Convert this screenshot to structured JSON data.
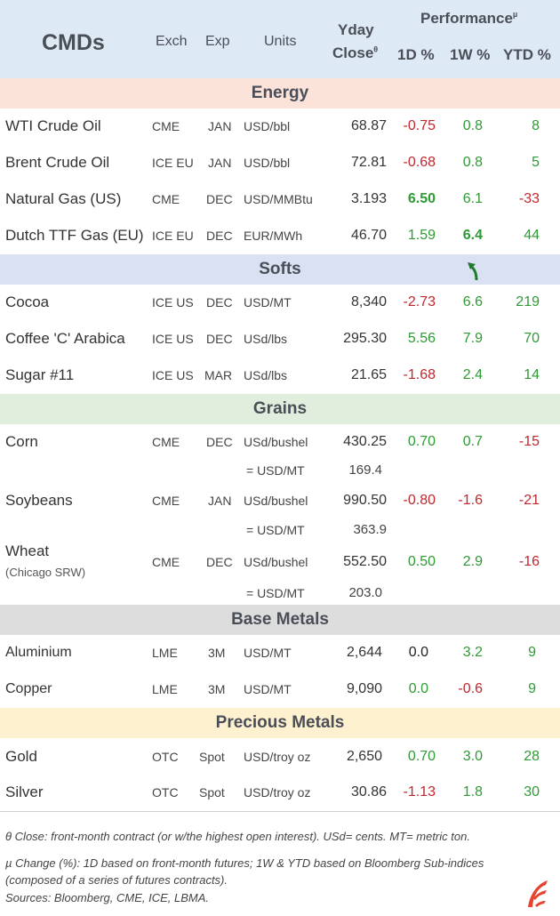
{
  "header": {
    "title": "CMDs",
    "exch": "Exch",
    "exp": "Exp",
    "units": "Units",
    "yday": "Yday",
    "close": "Close",
    "close_mark": "θ",
    "performance": "Performance",
    "perf_mark": "µ",
    "d1": "1D %",
    "w1": "1W %",
    "ytd": "YTD %"
  },
  "sections": {
    "energy": "Energy",
    "softs": "Softs",
    "grains": "Grains",
    "base": "Base Metals",
    "precious": "Precious Metals"
  },
  "rows": {
    "wti": {
      "name": "WTI Crude Oil",
      "exch": "CME",
      "exp": "JAN",
      "units": "USD/bbl",
      "close": "68.87",
      "d1": "-0.75",
      "w1": "0.8",
      "ytd": "8"
    },
    "brent": {
      "name": "Brent Crude Oil",
      "exch": "ICE EU",
      "exp": "JAN",
      "units": "USD/bbl",
      "close": "72.81",
      "d1": "-0.68",
      "w1": "0.8",
      "ytd": "5"
    },
    "natgas": {
      "name": "Natural Gas (US)",
      "exch": "CME",
      "exp": "DEC",
      "units": "USD/MMBtu",
      "close": "3.193",
      "d1": "6.50",
      "w1": "6.1",
      "ytd": "-33"
    },
    "ttf": {
      "name": "Dutch TTF Gas (EU)",
      "exch": "ICE EU",
      "exp": "DEC",
      "units": "EUR/MWh",
      "close": "46.70",
      "d1": "1.59",
      "w1": "6.4",
      "ytd": "44"
    },
    "cocoa": {
      "name": "Cocoa",
      "exch": "ICE US",
      "exp": "DEC",
      "units": "USD/MT",
      "close": "8,340",
      "d1": "-2.73",
      "w1": "6.6",
      "ytd": "219"
    },
    "coffee": {
      "name": "Coffee 'C' Arabica",
      "exch": "ICE US",
      "exp": "DEC",
      "units": "USd/lbs",
      "close": "295.30",
      "d1": "5.56",
      "w1": "7.9",
      "ytd": "70"
    },
    "sugar": {
      "name": "Sugar #11",
      "exch": "ICE US",
      "exp": "MAR",
      "units": "USd/lbs",
      "close": "21.65",
      "d1": "-1.68",
      "w1": "2.4",
      "ytd": "14"
    },
    "corn": {
      "name": "Corn",
      "exch": "CME",
      "exp": "DEC",
      "units": "USd/bushel",
      "close": "430.25",
      "d1": "0.70",
      "w1": "0.7",
      "ytd": "-15",
      "alt_units": "= USD/MT",
      "alt_close": "169.4"
    },
    "soy": {
      "name": "Soybeans",
      "exch": "CME",
      "exp": "JAN",
      "units": "USd/bushel",
      "close": "990.50",
      "d1": "-0.80",
      "w1": "-1.6",
      "ytd": "-21",
      "alt_units": "= USD/MT",
      "alt_close": "363.9"
    },
    "wheat": {
      "name": "Wheat",
      "subname": "(Chicago SRW)",
      "exch": "CME",
      "exp": "DEC",
      "units": "USd/bushel",
      "close": "552.50",
      "d1": "0.50",
      "w1": "2.9",
      "ytd": "-16",
      "alt_units": "= USD/MT",
      "alt_close": "203.0"
    },
    "alu": {
      "name": "Aluminium",
      "exch": "LME",
      "exp": "3M",
      "units": "USD/MT",
      "close": "2,644",
      "d1": "0.0",
      "w1": "3.2",
      "ytd": "9"
    },
    "copper": {
      "name": "Copper",
      "exch": "LME",
      "exp": "3M",
      "units": "USD/MT",
      "close": "9,090",
      "d1": "0.0",
      "w1": "-0.6",
      "ytd": "9"
    },
    "gold": {
      "name": "Gold",
      "exch": "OTC",
      "exp": "Spot",
      "units": "USD/troy oz",
      "close": "2,650",
      "d1": "0.70",
      "w1": "3.0",
      "ytd": "28"
    },
    "silver": {
      "name": "Silver",
      "exch": "OTC",
      "exp": "Spot",
      "units": "USD/troy oz",
      "close": "30.86",
      "d1": "-1.13",
      "w1": "1.8",
      "ytd": "30"
    }
  },
  "footnotes": {
    "f1": "θ Close: front-month contract (or w/the highest open interest). USd= cents. MT= metric ton.",
    "f2": "µ Change (%): 1D based on front-month futures; 1W & YTD based on Bloomberg Sub-indices (composed of a series of futures contracts).",
    "f3": "Sources: Bloomberg, CME, ICE, LBMA."
  },
  "colors": {
    "negative": "#c0272d",
    "positive": "#2e9a34",
    "logo": "#e8432f"
  }
}
